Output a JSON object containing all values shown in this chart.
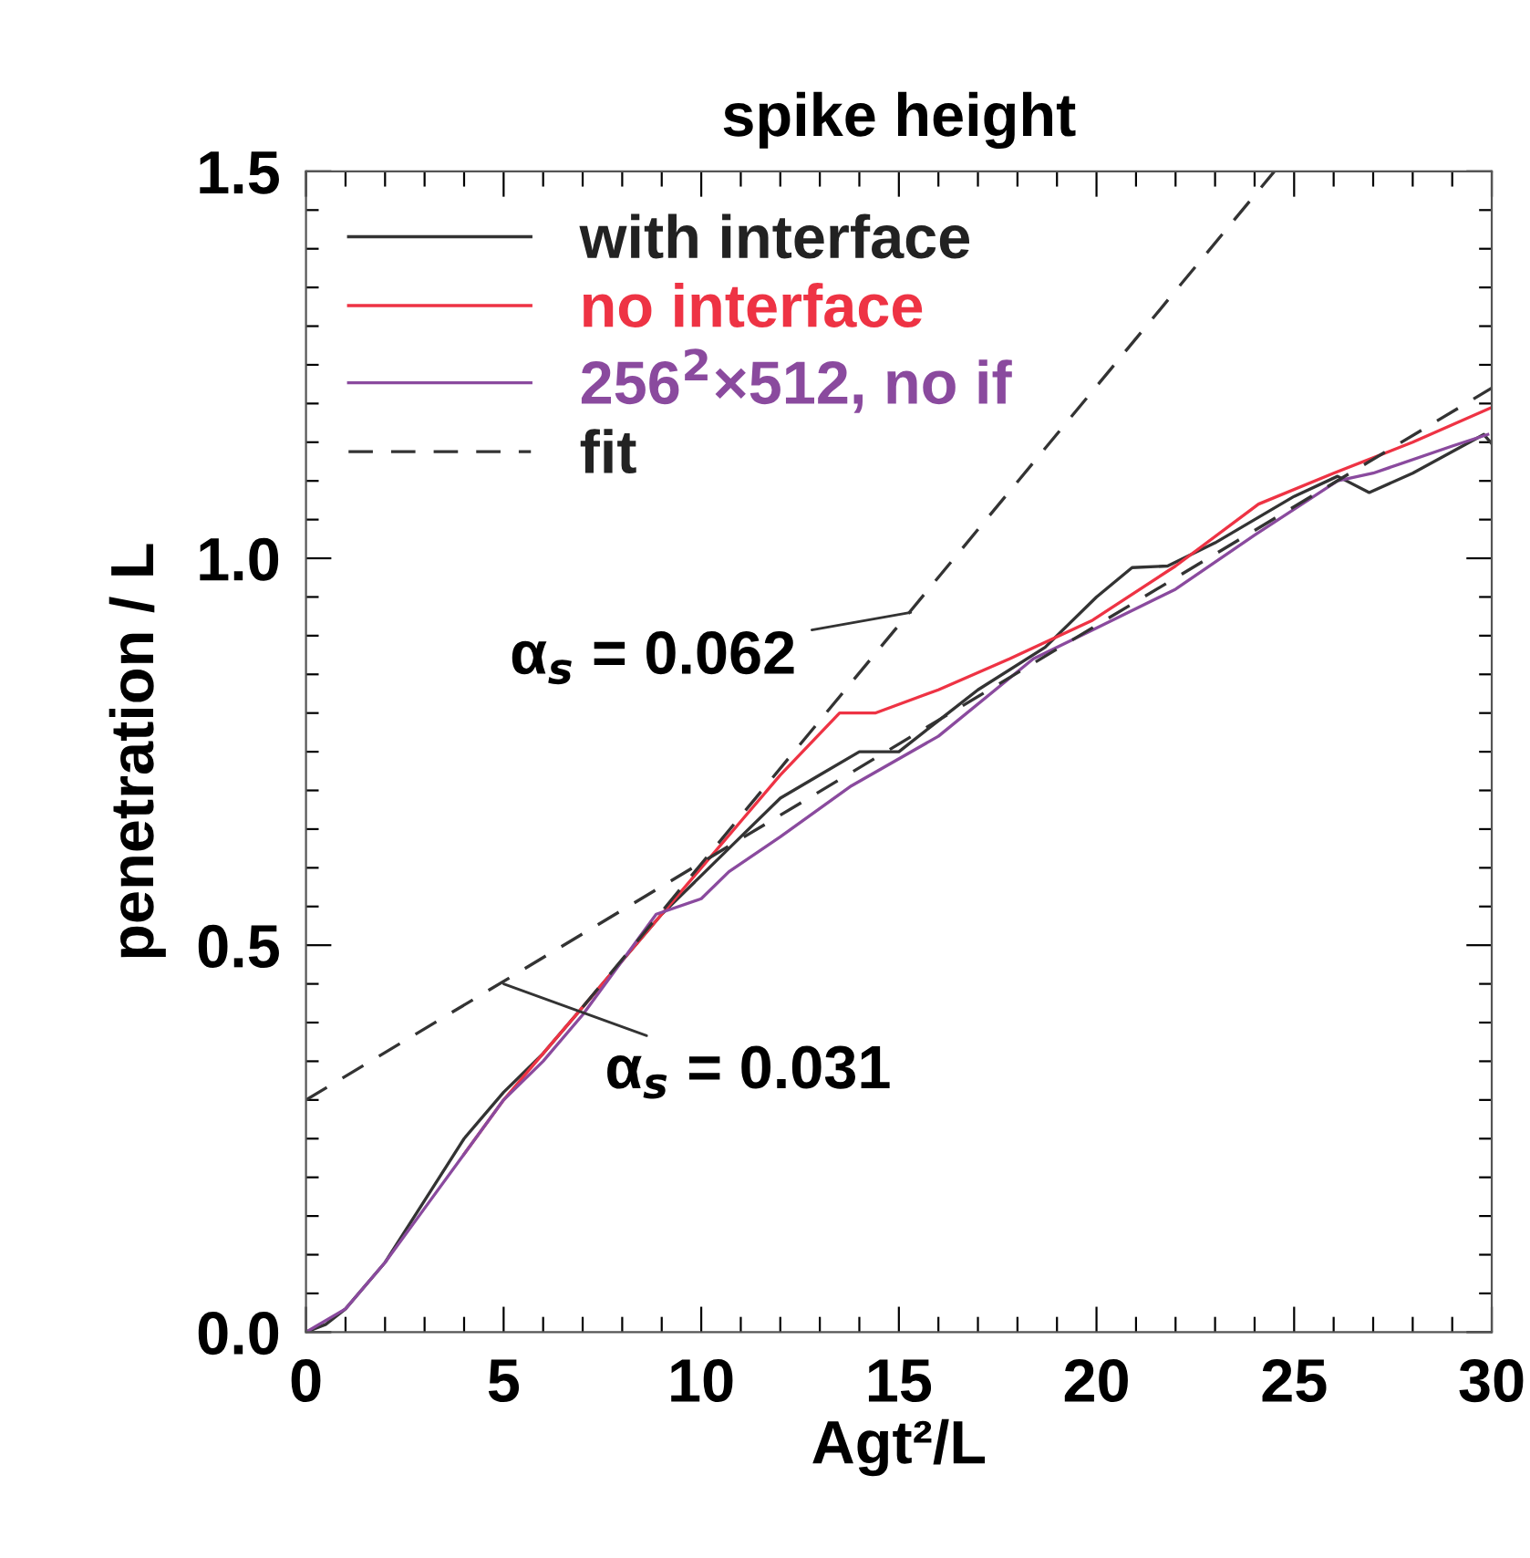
{
  "chart_data": {
    "type": "line",
    "title": "spike height",
    "xlabel": "Agt²/L",
    "ylabel": "penetration / L",
    "xlim": [
      0,
      30
    ],
    "ylim": [
      0,
      1.5
    ],
    "xticks": [
      0,
      {
        "value": 1,
        "label": null
      },
      {
        "value": 2,
        "label": null
      },
      {
        "value": 3,
        "label": null
      },
      {
        "value": 4,
        "label": null
      },
      5,
      {
        "value": 6,
        "label": null
      },
      {
        "value": 7,
        "label": null
      },
      {
        "value": 8,
        "label": null
      },
      {
        "value": 9,
        "label": null
      },
      10,
      {
        "value": 11,
        "label": null
      },
      {
        "value": 12,
        "label": null
      },
      {
        "value": 13,
        "label": null
      },
      {
        "value": 14,
        "label": null
      },
      15,
      {
        "value": 16,
        "label": null
      },
      {
        "value": 17,
        "label": null
      },
      {
        "value": 18,
        "label": null
      },
      {
        "value": 19,
        "label": null
      },
      20,
      {
        "value": 21,
        "label": null
      },
      {
        "value": 22,
        "label": null
      },
      {
        "value": 23,
        "label": null
      },
      {
        "value": 24,
        "label": null
      },
      25,
      {
        "value": 26,
        "label": null
      },
      {
        "value": 27,
        "label": null
      },
      {
        "value": 28,
        "label": null
      },
      {
        "value": 29,
        "label": null
      },
      30
    ],
    "yticks": [
      {
        "value": 0,
        "label": "0.0"
      },
      {
        "value": 0.05,
        "label": null
      },
      {
        "value": 0.1,
        "label": null
      },
      {
        "value": 0.15,
        "label": null
      },
      {
        "value": 0.2,
        "label": null
      },
      {
        "value": 0.25,
        "label": null
      },
      {
        "value": 0.3,
        "label": null
      },
      {
        "value": 0.35,
        "label": null
      },
      {
        "value": 0.4,
        "label": null
      },
      {
        "value": 0.45,
        "label": null
      },
      0.5,
      {
        "value": 0.55,
        "label": null
      },
      {
        "value": 0.6,
        "label": null
      },
      {
        "value": 0.65,
        "label": null
      },
      {
        "value": 0.7,
        "label": null
      },
      {
        "value": 0.75,
        "label": null
      },
      {
        "value": 0.8,
        "label": null
      },
      {
        "value": 0.85,
        "label": null
      },
      {
        "value": 0.9,
        "label": null
      },
      {
        "value": 0.95,
        "label": null
      },
      {
        "value": 1.0,
        "label": "1.0"
      },
      {
        "value": 1.05,
        "label": null
      },
      {
        "value": 1.1,
        "label": null
      },
      {
        "value": 1.15,
        "label": null
      },
      {
        "value": 1.2,
        "label": null
      },
      {
        "value": 1.25,
        "label": null
      },
      {
        "value": 1.3,
        "label": null
      },
      {
        "value": 1.35,
        "label": null
      },
      {
        "value": 1.4,
        "label": null
      },
      {
        "value": 1.45,
        "label": null
      },
      1.5
    ],
    "grid": false,
    "legend": "top left",
    "line_style": "solid",
    "marker": "none",
    "series": [
      {
        "name": "with interface",
        "color": "#333333",
        "x": [
          0,
          0.5,
          1,
          2,
          3,
          4,
          5,
          6,
          7,
          8,
          9,
          10,
          11,
          12,
          13,
          14,
          15,
          16,
          17,
          18.7,
          20,
          20.9,
          21.8,
          23,
          24,
          25,
          26.1,
          26.9,
          28,
          29.8,
          30
        ],
        "values": [
          0,
          0.01,
          0.03,
          0.09,
          0.17,
          0.25,
          0.31,
          0.36,
          0.42,
          0.48,
          0.54,
          0.59,
          0.64,
          0.69,
          0.72,
          0.75,
          0.75,
          0.79,
          0.83,
          0.885,
          0.95,
          0.988,
          0.99,
          1.02,
          1.05,
          1.08,
          1.106,
          1.085,
          1.11,
          1.16,
          1.148
        ]
      },
      {
        "name": "no interface",
        "color": "#ee3344",
        "x": [
          4,
          5,
          6,
          7,
          8,
          9,
          10,
          11,
          12,
          13.5,
          14.4,
          16,
          17.8,
          19.9,
          22,
          24.1,
          26,
          28,
          30
        ],
        "values": [
          0.23,
          0.3,
          0.36,
          0.42,
          0.48,
          0.54,
          0.6,
          0.66,
          0.72,
          0.8,
          0.8,
          0.83,
          0.87,
          0.92,
          0.99,
          1.07,
          1.11,
          1.15,
          1.195
        ]
      },
      {
        "name": "256$^{2}$×512, no if",
        "color": "#8a4a9e",
        "x": [
          0,
          1,
          2,
          3,
          4,
          5,
          6,
          7,
          8,
          8.86,
          10,
          10.7,
          12,
          13.8,
          16,
          18.4,
          20,
          22,
          24,
          26.1,
          27,
          29,
          29.9
        ],
        "values": [
          0,
          0.03,
          0.09,
          0.16,
          0.23,
          0.3,
          0.35,
          0.41,
          0.48,
          0.54,
          0.56,
          0.595,
          0.64,
          0.706,
          0.77,
          0.87,
          0.91,
          0.96,
          1.03,
          1.1,
          1.11,
          1.145,
          1.16
        ]
      },
      {
        "name": "fit",
        "color": "#333333",
        "line_style": "dashed",
        "x": [
          7,
          24.5
        ],
        "values": [
          0.42,
          1.5
        ]
      },
      {
        "color": "#333333",
        "line_style": "dashed",
        "x": [
          0,
          30
        ],
        "values": [
          0.3,
          1.22
        ]
      }
    ],
    "annotations": [
      {
        "text": "α$_{s}$ = 0.062",
        "x": 15.3,
        "y": 0.93
      },
      {
        "text": "α$_{s}$ = 0.031",
        "x": 5.0,
        "y": 0.45
      }
    ]
  }
}
